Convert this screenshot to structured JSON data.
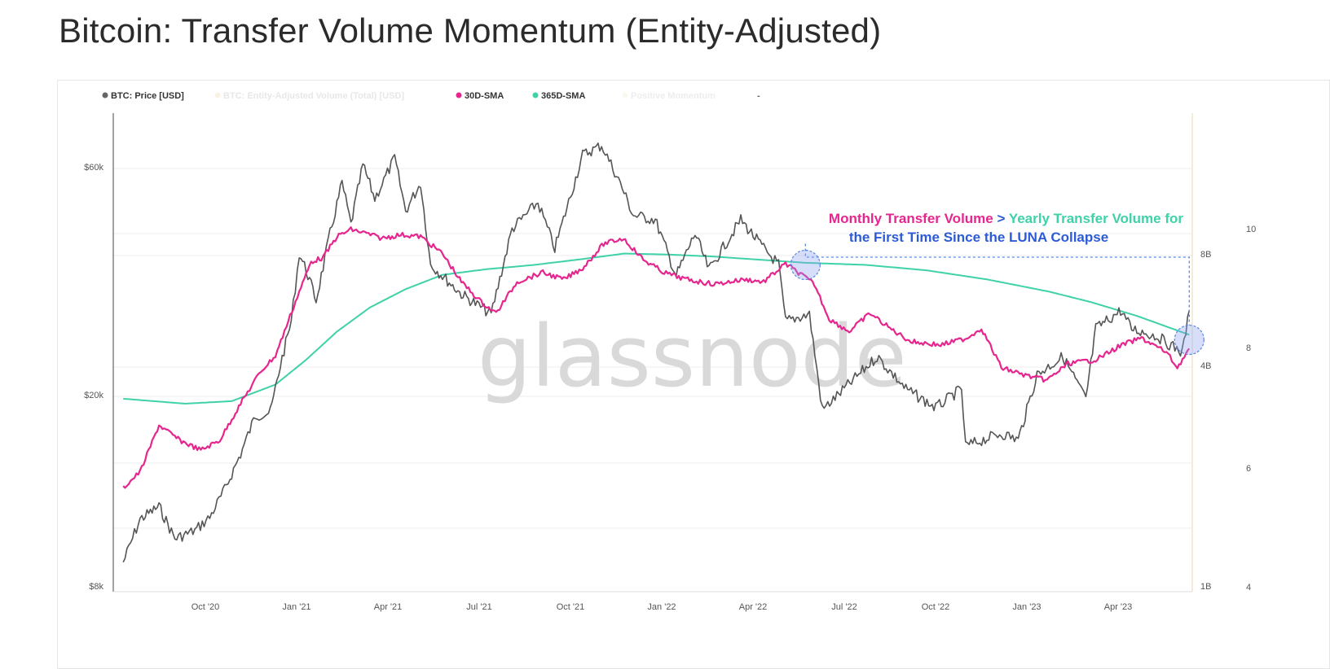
{
  "page": {
    "title": "Bitcoin: Transfer Volume Momentum (Entity-Adjusted)"
  },
  "chart_data": {
    "type": "line",
    "title": "Bitcoin: Transfer Volume Momentum (Entity-Adjusted)",
    "watermark": "glassnode",
    "legend": {
      "placement": "top-left",
      "items": [
        {
          "label": "BTC: Price [USD]",
          "color": "#666666"
        },
        {
          "label": "BTC: Entity-Adjusted Volume (Total) [USD]",
          "color": "#f2d9b3"
        },
        {
          "label": "30D-SMA",
          "color": "#e6268f"
        },
        {
          "label": "365D-SMA",
          "color": "#3fd1a8"
        },
        {
          "label": "Positive Momentum",
          "color": "#f6f0d2"
        },
        {
          "label": "-",
          "color": "#999999"
        }
      ]
    },
    "x_ticks": [
      "Oct '20",
      "Jan '21",
      "Apr '21",
      "Jul '21",
      "Oct '21",
      "Jan '22",
      "Apr '22",
      "Jul '22",
      "Oct '22",
      "Jan '23",
      "Apr '23"
    ],
    "y_left": {
      "scale": "log",
      "ticks": [
        "$60k",
        "$20k",
        "$8k"
      ]
    },
    "y_mid": {
      "scale": "log",
      "ticks": [
        "8B",
        "4B",
        "1B"
      ]
    },
    "y_right": {
      "ticks": [
        "10",
        "8",
        "6",
        "4"
      ]
    },
    "grid": true,
    "series": [
      {
        "name": "BTC: Price [USD]",
        "color": "#555555",
        "points": [
          [
            "2020-07-15",
            9200
          ],
          [
            "2020-08-01",
            11300
          ],
          [
            "2020-08-20",
            12000
          ],
          [
            "2020-09-05",
            10300
          ],
          [
            "2020-09-25",
            10700
          ],
          [
            "2020-10-10",
            11400
          ],
          [
            "2020-10-25",
            13000
          ],
          [
            "2020-11-10",
            15400
          ],
          [
            "2020-11-25",
            18500
          ],
          [
            "2020-12-10",
            18800
          ],
          [
            "2020-12-20",
            23500
          ],
          [
            "2020-12-31",
            29000
          ],
          [
            "2021-01-08",
            40000
          ],
          [
            "2021-01-15",
            37000
          ],
          [
            "2021-01-25",
            32000
          ],
          [
            "2021-02-08",
            44000
          ],
          [
            "2021-02-20",
            56000
          ],
          [
            "2021-03-01",
            46000
          ],
          [
            "2021-03-13",
            61000
          ],
          [
            "2021-03-25",
            52000
          ],
          [
            "2021-04-14",
            63000
          ],
          [
            "2021-04-25",
            49000
          ],
          [
            "2021-05-10",
            56000
          ],
          [
            "2021-05-20",
            38000
          ],
          [
            "2021-06-01",
            36000
          ],
          [
            "2021-06-20",
            33000
          ],
          [
            "2021-07-20",
            30000
          ],
          [
            "2021-08-10",
            45000
          ],
          [
            "2021-09-05",
            51000
          ],
          [
            "2021-09-22",
            41000
          ],
          [
            "2021-10-20",
            64000
          ],
          [
            "2021-11-08",
            67000
          ],
          [
            "2021-11-25",
            57000
          ],
          [
            "2021-12-10",
            48000
          ],
          [
            "2022-01-01",
            47000
          ],
          [
            "2022-01-22",
            36000
          ],
          [
            "2022-02-10",
            44000
          ],
          [
            "2022-02-24",
            37000
          ],
          [
            "2022-03-28",
            47000
          ],
          [
            "2022-04-20",
            41000
          ],
          [
            "2022-05-05",
            38000
          ],
          [
            "2022-05-12",
            29000
          ],
          [
            "2022-06-05",
            30000
          ],
          [
            "2022-06-18",
            19000
          ],
          [
            "2022-07-10",
            21000
          ],
          [
            "2022-08-12",
            24500
          ],
          [
            "2022-09-10",
            21000
          ],
          [
            "2022-10-10",
            19200
          ],
          [
            "2022-11-05",
            21000
          ],
          [
            "2022-11-09",
            16000
          ],
          [
            "2022-12-15",
            17000
          ],
          [
            "2023-01-01",
            16500
          ],
          [
            "2023-01-20",
            22500
          ],
          [
            "2023-02-15",
            24500
          ],
          [
            "2023-03-10",
            20000
          ],
          [
            "2023-03-20",
            28000
          ],
          [
            "2023-04-14",
            30500
          ],
          [
            "2023-04-25",
            28000
          ],
          [
            "2023-05-20",
            27000
          ],
          [
            "2023-06-15",
            25000
          ],
          [
            "2023-06-22",
            30500
          ]
        ]
      },
      {
        "name": "30D-SMA",
        "color": "#e6268f",
        "points": [
          [
            "2020-07-15",
            1.9
          ],
          [
            "2020-08-01",
            2.1
          ],
          [
            "2020-08-20",
            2.8
          ],
          [
            "2020-09-10",
            2.55
          ],
          [
            "2020-10-01",
            2.4
          ],
          [
            "2020-10-20",
            2.55
          ],
          [
            "2020-11-10",
            3.2
          ],
          [
            "2020-11-30",
            3.9
          ],
          [
            "2020-12-15",
            4.3
          ],
          [
            "2021-01-08",
            6.4
          ],
          [
            "2021-01-20",
            7.7
          ],
          [
            "2021-02-01",
            7.9
          ],
          [
            "2021-02-15",
            9.0
          ],
          [
            "2021-03-01",
            9.4
          ],
          [
            "2021-03-15",
            9.2
          ],
          [
            "2021-04-01",
            8.9
          ],
          [
            "2021-04-20",
            9.1
          ],
          [
            "2021-05-10",
            9.0
          ],
          [
            "2021-06-01",
            8.1
          ],
          [
            "2021-06-20",
            6.8
          ],
          [
            "2021-07-10",
            6.0
          ],
          [
            "2021-07-25",
            5.6
          ],
          [
            "2021-08-15",
            6.8
          ],
          [
            "2021-09-10",
            7.2
          ],
          [
            "2021-10-01",
            6.9
          ],
          [
            "2021-10-20",
            7.4
          ],
          [
            "2021-11-10",
            8.6
          ],
          [
            "2021-11-30",
            8.9
          ],
          [
            "2021-12-20",
            7.8
          ],
          [
            "2022-01-10",
            7.2
          ],
          [
            "2022-02-01",
            6.9
          ],
          [
            "2022-03-01",
            6.7
          ],
          [
            "2022-04-01",
            6.9
          ],
          [
            "2022-04-20",
            6.8
          ],
          [
            "2022-05-12",
            7.6
          ],
          [
            "2022-05-25",
            7.2
          ],
          [
            "2022-06-10",
            6.7
          ],
          [
            "2022-06-25",
            5.4
          ],
          [
            "2022-07-15",
            5.0
          ],
          [
            "2022-08-05",
            5.6
          ],
          [
            "2022-08-25",
            5.1
          ],
          [
            "2022-09-15",
            4.7
          ],
          [
            "2022-10-15",
            4.6
          ],
          [
            "2022-11-10",
            4.8
          ],
          [
            "2022-11-25",
            5.1
          ],
          [
            "2022-12-15",
            4.0
          ],
          [
            "2023-01-10",
            3.8
          ],
          [
            "2023-01-30",
            3.7
          ],
          [
            "2023-02-20",
            4.1
          ],
          [
            "2023-03-20",
            4.2
          ],
          [
            "2023-04-15",
            4.6
          ],
          [
            "2023-05-05",
            4.8
          ],
          [
            "2023-05-30",
            4.4
          ],
          [
            "2023-06-10",
            4.0
          ],
          [
            "2023-06-22",
            4.5
          ]
        ]
      },
      {
        "name": "365D-SMA",
        "color": "#3fd1a8",
        "points": [
          [
            "2020-07-15",
            3.3
          ],
          [
            "2020-09-15",
            3.2
          ],
          [
            "2020-11-01",
            3.25
          ],
          [
            "2020-12-15",
            3.6
          ],
          [
            "2021-01-15",
            4.2
          ],
          [
            "2021-02-15",
            5.0
          ],
          [
            "2021-03-20",
            5.8
          ],
          [
            "2021-04-25",
            6.5
          ],
          [
            "2021-06-01",
            7.1
          ],
          [
            "2021-07-15",
            7.35
          ],
          [
            "2021-09-01",
            7.55
          ],
          [
            "2021-10-15",
            7.8
          ],
          [
            "2021-12-01",
            8.1
          ],
          [
            "2022-01-15",
            8.05
          ],
          [
            "2022-03-01",
            7.95
          ],
          [
            "2022-04-15",
            7.8
          ],
          [
            "2022-06-01",
            7.65
          ],
          [
            "2022-08-01",
            7.55
          ],
          [
            "2022-10-01",
            7.3
          ],
          [
            "2022-12-01",
            6.9
          ],
          [
            "2023-02-01",
            6.4
          ],
          [
            "2023-03-15",
            6.0
          ],
          [
            "2023-05-01",
            5.5
          ],
          [
            "2023-06-22",
            4.9
          ]
        ]
      }
    ],
    "annotation": {
      "part1": "Monthly Transfer Volume",
      "part2": ">",
      "part3": "Yearly Transfer Volume for",
      "line2": "the First Time Since the LUNA Collapse",
      "part1_color": "#e6268f",
      "part2_color": "#2d5bd6",
      "part3_color": "#3fd1a8",
      "line2_color": "#2d5bd6",
      "marker_dates": [
        "2022-06-01",
        "2023-06-22"
      ]
    }
  }
}
